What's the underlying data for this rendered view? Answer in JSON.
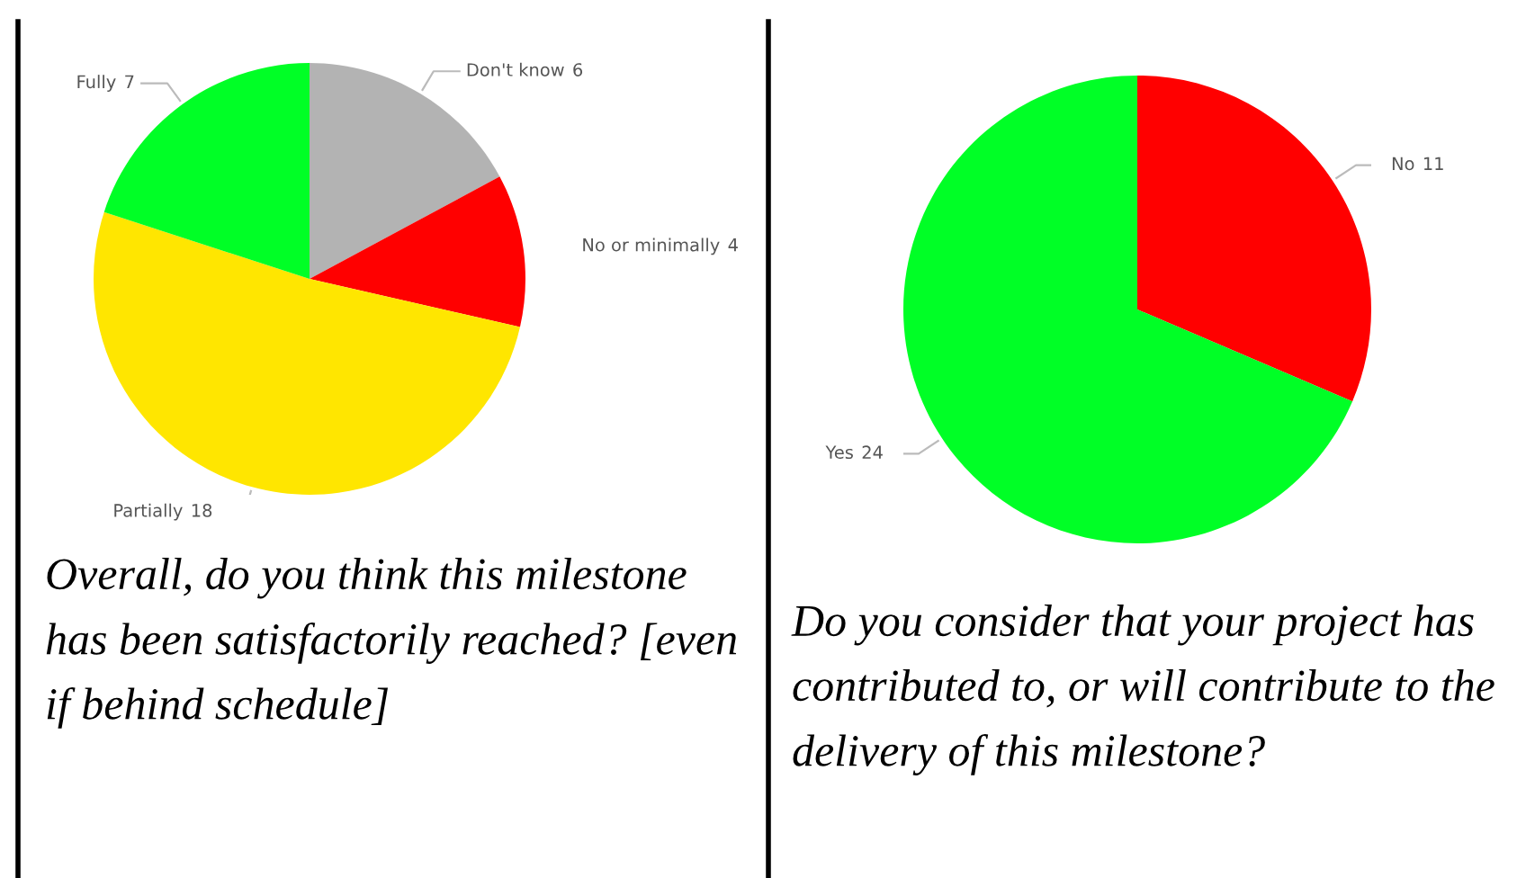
{
  "chart_data": [
    {
      "type": "pie",
      "title": "Overall, do you think this milestone has been satisfactorily reached? [even if behind schedule]",
      "categories": [
        "Don't know",
        "No or minimally",
        "Partially",
        "Fully"
      ],
      "values": [
        6,
        4,
        18,
        7
      ],
      "colors": [
        "#b3b3b3",
        "#ff0000",
        "#ffe600",
        "#00ff26"
      ],
      "data_labels": true,
      "legend": false
    },
    {
      "type": "pie",
      "title": "Do you consider that your project has contributed to, or will contribute to the delivery of this milestone?",
      "categories": [
        "No",
        "Yes"
      ],
      "values": [
        11,
        24
      ],
      "colors": [
        "#ff0000",
        "#00ff26"
      ],
      "data_labels": true,
      "legend": false
    }
  ]
}
